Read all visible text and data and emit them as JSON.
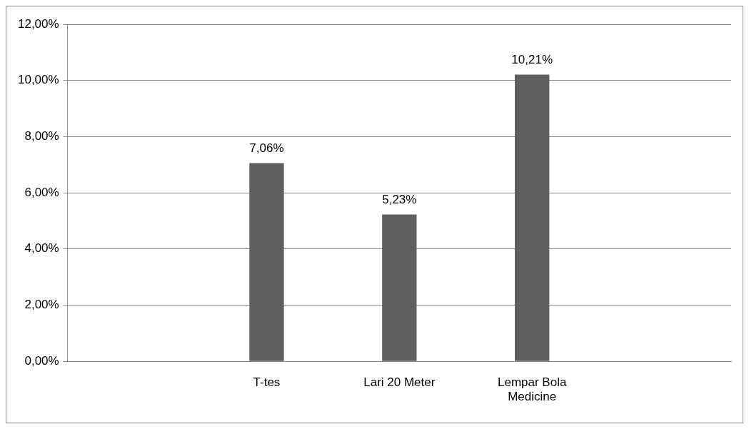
{
  "chart_data": {
    "type": "bar",
    "categories": [
      null,
      "T-tes",
      "Lari 20 Meter",
      "Lempar Bola\nMedicine",
      null
    ],
    "values": [
      null,
      7.06,
      5.23,
      10.21,
      null
    ],
    "value_labels": [
      null,
      "7,06%",
      "5,23%",
      "10,21%",
      null
    ],
    "color": "#5f5f5f",
    "ylim": [
      0,
      12
    ],
    "yticks": [
      {
        "value": 0,
        "label": "0,00%"
      },
      {
        "value": 2,
        "label": "2,00%"
      },
      {
        "value": 4,
        "label": "4,00%"
      },
      {
        "value": 6,
        "label": "6,00%"
      },
      {
        "value": 8,
        "label": "8,00%"
      },
      {
        "value": 10,
        "label": "10,00%"
      },
      {
        "value": 12,
        "label": "12,00%"
      }
    ],
    "grid": "y",
    "legend": false
  }
}
